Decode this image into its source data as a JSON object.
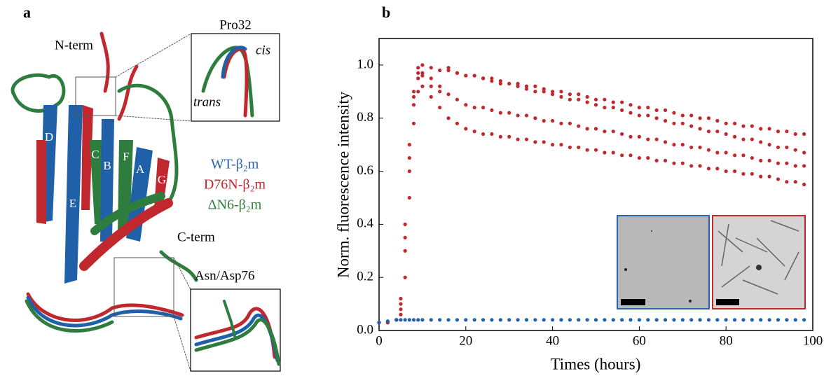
{
  "panel_a": {
    "label": "a",
    "n_term": "N-term",
    "pro32": "Pro32",
    "cis": "cis",
    "trans": "trans",
    "c_term": "C-term",
    "asn_asp76": "Asn/Asp76",
    "strands": [
      "D",
      "C",
      "B",
      "F",
      "A",
      "G",
      "E"
    ],
    "legend": [
      "WT-β₂m",
      "D76N-β₂m",
      "ΔN6-β₂m"
    ]
  },
  "chart_data": {
    "type": "scatter",
    "panel_label": "b",
    "xlabel": "Times (hours)",
    "ylabel": "Norm. fluorescence intensity",
    "xlim": [
      0,
      100
    ],
    "xticks": [
      0,
      20,
      40,
      60,
      80,
      100
    ],
    "ylim": [
      0,
      1.1
    ],
    "yticks": [
      {
        "value": 0,
        "label": "0.0"
      },
      {
        "value": 0.2,
        "label": "0.2"
      },
      {
        "value": 0.4,
        "label": "0.4"
      },
      {
        "value": 0.6,
        "label": "0.6"
      },
      {
        "value": 0.8,
        "label": "0.8"
      },
      {
        "value": 1.0,
        "label": "1.0"
      }
    ],
    "x": [
      0,
      2,
      4,
      5,
      6,
      7,
      8,
      9,
      10,
      12,
      14,
      16,
      18,
      20,
      22,
      24,
      26,
      28,
      30,
      32,
      34,
      36,
      38,
      40,
      42,
      44,
      46,
      48,
      50,
      52,
      54,
      56,
      58,
      60,
      62,
      64,
      66,
      68,
      70,
      72,
      74,
      76,
      78,
      80,
      82,
      84,
      86,
      88,
      90,
      92,
      94,
      96,
      98
    ],
    "series": [
      {
        "color": "#c0282d",
        "values": [
          0.03,
          0.03,
          0.04,
          0.12,
          0.4,
          0.7,
          0.9,
          0.99,
          1.0,
          0.99,
          0.98,
          0.98,
          0.97,
          0.96,
          0.96,
          0.95,
          0.95,
          0.94,
          0.93,
          0.93,
          0.92,
          0.92,
          0.91,
          0.9,
          0.9,
          0.89,
          0.89,
          0.88,
          0.87,
          0.87,
          0.86,
          0.86,
          0.85,
          0.84,
          0.84,
          0.83,
          0.83,
          0.82,
          0.81,
          0.81,
          0.8,
          0.8,
          0.79,
          0.78,
          0.78,
          0.77,
          0.77,
          0.76,
          0.76,
          0.75,
          0.75,
          0.74,
          0.74
        ]
      },
      {
        "color": "#c0282d",
        "values": [
          0.03,
          0.03,
          0.04,
          0.08,
          0.3,
          0.6,
          0.85,
          0.95,
          0.97,
          0.95,
          0.92,
          0.89,
          0.87,
          0.85,
          0.84,
          0.84,
          0.83,
          0.82,
          0.82,
          0.81,
          0.81,
          0.8,
          0.79,
          0.79,
          0.78,
          0.78,
          0.77,
          0.76,
          0.76,
          0.75,
          0.75,
          0.74,
          0.73,
          0.73,
          0.72,
          0.72,
          0.71,
          0.7,
          0.7,
          0.69,
          0.69,
          0.68,
          0.67,
          0.67,
          0.66,
          0.66,
          0.65,
          0.64,
          0.64,
          0.63,
          0.63,
          0.62,
          0.62
        ]
      },
      {
        "color": "#c0282d",
        "values": [
          0.03,
          0.03,
          0.04,
          0.06,
          0.2,
          0.5,
          0.78,
          0.9,
          0.92,
          0.88,
          0.84,
          0.8,
          0.78,
          0.76,
          0.75,
          0.74,
          0.74,
          0.73,
          0.73,
          0.72,
          0.72,
          0.71,
          0.71,
          0.7,
          0.7,
          0.69,
          0.69,
          0.68,
          0.68,
          0.67,
          0.67,
          0.66,
          0.66,
          0.65,
          0.65,
          0.64,
          0.64,
          0.63,
          0.63,
          0.62,
          0.62,
          0.61,
          0.61,
          0.6,
          0.6,
          0.59,
          0.59,
          0.58,
          0.58,
          0.57,
          0.56,
          0.56,
          0.55
        ]
      },
      {
        "color": "#c0282d",
        "values": [
          0.03,
          0.03,
          0.04,
          0.1,
          0.35,
          0.65,
          0.88,
          0.97,
          0.96,
          0.92,
          0.9,
          0.99,
          0.97,
          0.96,
          0.96,
          0.95,
          0.94,
          0.93,
          0.93,
          0.92,
          0.91,
          0.9,
          0.9,
          0.89,
          0.88,
          0.87,
          0.87,
          0.86,
          0.85,
          0.84,
          0.84,
          0.83,
          0.82,
          0.81,
          0.81,
          0.8,
          0.79,
          0.78,
          0.78,
          0.77,
          0.76,
          0.75,
          0.75,
          0.74,
          0.73,
          0.72,
          0.72,
          0.71,
          0.7,
          0.69,
          0.69,
          0.68,
          0.67
        ]
      },
      {
        "color": "#2060a8",
        "values": [
          0.03,
          0.035,
          0.04,
          0.04,
          0.04,
          0.04,
          0.04,
          0.04,
          0.04,
          0.04,
          0.04,
          0.04,
          0.04,
          0.04,
          0.04,
          0.04,
          0.04,
          0.04,
          0.04,
          0.04,
          0.04,
          0.04,
          0.04,
          0.04,
          0.04,
          0.04,
          0.04,
          0.04,
          0.04,
          0.04,
          0.04,
          0.04,
          0.04,
          0.04,
          0.04,
          0.04,
          0.04,
          0.04,
          0.04,
          0.04,
          0.04,
          0.04,
          0.04,
          0.04,
          0.04,
          0.04,
          0.04,
          0.04,
          0.04,
          0.04,
          0.04,
          0.04,
          0.04
        ]
      }
    ]
  }
}
